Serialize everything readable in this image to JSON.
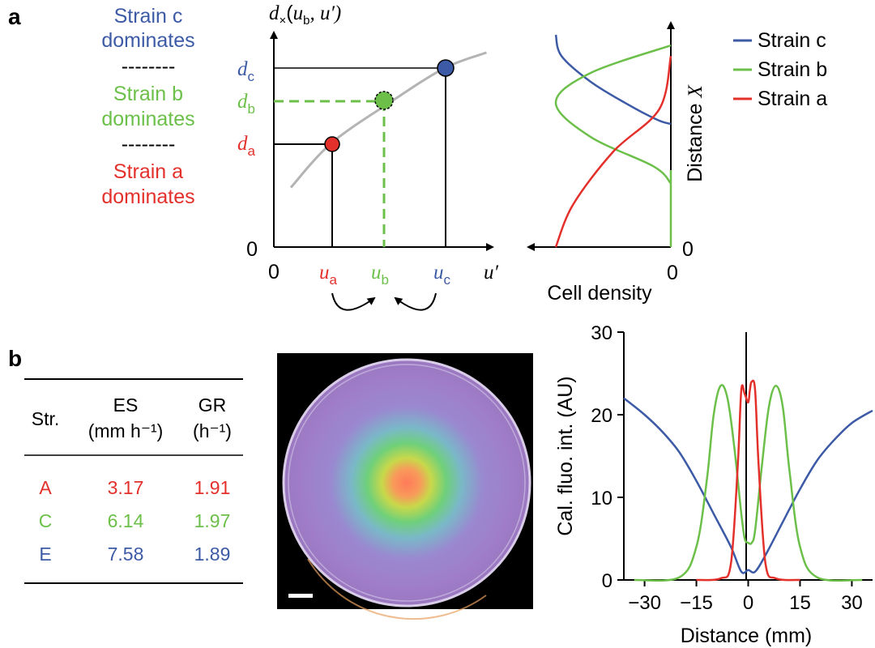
{
  "colors": {
    "strain_a": "#e4302b",
    "strain_b": "#6cc04a",
    "strain_c": "#3c5aa6",
    "axis": "#000000",
    "curve": "#b4b4b4"
  },
  "panel_a": {
    "label": "a",
    "dominance": {
      "c": [
        "Strain c",
        "dominates"
      ],
      "b": [
        "Strain b",
        "dominates"
      ],
      "a": [
        "Strain a",
        "dominates"
      ],
      "separator": "--------"
    },
    "left_axis": {
      "y_label_main": "d",
      "y_label_sub": "×",
      "y_label_args_open": "(",
      "y_label_args_u": "u",
      "y_label_args_b": "b",
      "y_label_args_rest": ", u′)",
      "x_label": "u′",
      "origin_x": "0",
      "origin_y": "0",
      "ticks_y": [
        {
          "main": "d",
          "sub": "c",
          "color": "#3c5aa6"
        },
        {
          "main": "d",
          "sub": "b",
          "color": "#6cc04a"
        },
        {
          "main": "d",
          "sub": "a",
          "color": "#e4302b"
        }
      ],
      "ticks_x": [
        {
          "main": "u",
          "sub": "a",
          "color": "#e4302b"
        },
        {
          "main": "u",
          "sub": "b",
          "color": "#6cc04a"
        },
        {
          "main": "u",
          "sub": "c",
          "color": "#3c5aa6"
        }
      ]
    },
    "right_axis": {
      "x_label": "Cell density",
      "y_label": "Distance ",
      "y_label_var": "X",
      "x_zero": "0",
      "y_zero": "0"
    },
    "legend": [
      "Strain c",
      "Strain b",
      "Strain a"
    ]
  },
  "panel_b": {
    "label": "b",
    "table": {
      "headers": [
        {
          "l1": "Str.",
          "l2": ""
        },
        {
          "l1": "ES",
          "l2": "(mm h⁻¹)"
        },
        {
          "l1": "GR",
          "l2": "(h⁻¹)"
        }
      ],
      "rows": [
        {
          "str": "A",
          "es": "3.17",
          "gr": "1.91",
          "color": "#e4302b"
        },
        {
          "str": "C",
          "es": "6.14",
          "gr": "1.97",
          "color": "#6cc04a"
        },
        {
          "str": "E",
          "es": "7.58",
          "gr": "1.89",
          "color": "#3c5aa6"
        }
      ]
    }
  },
  "chart_data": [
    {
      "type": "line",
      "title": "",
      "xlabel": "u′",
      "ylabel": "dₓ(u_b, u′)",
      "series": [
        {
          "name": "d_x curve",
          "x": [
            0.3,
            1.0,
            2.0,
            3.0,
            3.75
          ],
          "y": [
            0.3,
            0.52,
            0.72,
            0.9,
            0.98
          ]
        }
      ],
      "points": [
        {
          "name": "Strain a",
          "x": 1.0,
          "y": 0.52
        },
        {
          "name": "Strain b",
          "x": 2.0,
          "y": 0.72
        },
        {
          "name": "Strain c",
          "x": 3.0,
          "y": 0.9
        }
      ]
    },
    {
      "type": "line",
      "title": "",
      "xlabel": "Cell density",
      "ylabel": "Distance X",
      "series": [
        {
          "name": "Strain c",
          "density": [
            1.0,
            0.95,
            0.7,
            0.4,
            0.12,
            0.0
          ],
          "distance": [
            1.0,
            0.9,
            0.78,
            0.68,
            0.6,
            0.58
          ]
        },
        {
          "name": "Strain b",
          "density": [
            0.0,
            0.7,
            1.0,
            0.7,
            0.15,
            0.0
          ],
          "distance": [
            0.95,
            0.82,
            0.68,
            0.52,
            0.38,
            0.3
          ]
        },
        {
          "name": "Strain a",
          "density": [
            0.0,
            0.1,
            0.5,
            0.85,
            1.0
          ],
          "distance": [
            0.9,
            0.65,
            0.45,
            0.2,
            0.0
          ]
        }
      ]
    },
    {
      "type": "line",
      "title": "",
      "xlabel": "Distance (mm)",
      "ylabel": "Cal. fluo. int. (AU)",
      "xlim": [
        -36,
        36
      ],
      "ylim": [
        0,
        30
      ],
      "xticks": [
        -30,
        -15,
        0,
        15,
        30
      ],
      "yticks": [
        0,
        10,
        20,
        30
      ],
      "series": [
        {
          "name": "Strain c",
          "x": [
            -36,
            -30,
            -25,
            -20,
            -15,
            -10,
            -5,
            -2,
            0,
            2,
            5,
            10,
            15,
            20,
            25,
            30,
            36
          ],
          "y": [
            22,
            20,
            18,
            15.5,
            12,
            8,
            4,
            1,
            1.2,
            1,
            3,
            7,
            11,
            14.5,
            17,
            19,
            20.5
          ]
        },
        {
          "name": "Strain b",
          "x": [
            -33,
            -20,
            -15,
            -12,
            -10,
            -8,
            -6,
            -4,
            -2,
            -1,
            0,
            1,
            2,
            4,
            6,
            8,
            10,
            12,
            15,
            20,
            33
          ],
          "y": [
            0,
            0.3,
            4,
            12,
            20,
            23.5,
            22,
            16,
            8,
            5,
            4.5,
            4.5,
            6,
            14,
            21,
            23.5,
            21,
            13,
            4,
            0.3,
            0
          ]
        },
        {
          "name": "Strain a",
          "x": [
            -15,
            -8,
            -5,
            -3,
            -2,
            -1,
            0,
            0.5,
            1,
            2,
            3,
            5,
            8,
            15
          ],
          "y": [
            0,
            0.2,
            2,
            14,
            23,
            22.5,
            21.5,
            23,
            24,
            23,
            14,
            2,
            0.2,
            0
          ]
        }
      ]
    }
  ]
}
